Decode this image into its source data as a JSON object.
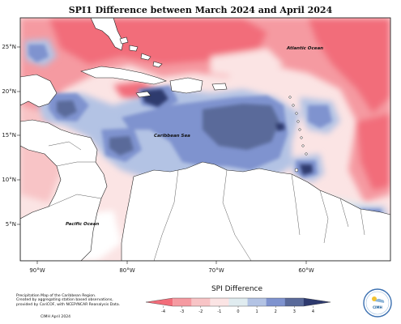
{
  "title": "SPI1 Difference between March 2024 and April 2024",
  "lon_ticks": [
    "90°W",
    "80°W",
    "70°W",
    "60°W"
  ],
  "lat_ticks": [
    "25°N",
    "20°N",
    "15°N",
    "10°N",
    "5°N"
  ],
  "place_labels": {
    "atlantic": "Atlantic Ocean",
    "caribbean": "Caribbean Sea",
    "pacific": "Pacific Ocean"
  },
  "credit_lines": [
    "Precipitation Map of the Caribbean Region.",
    "Created by aggregating station based observations,",
    "provided by CariCOF, with NCEP/NCAR Reanalysis Data."
  ],
  "date_stamp": "CIMH April 2024",
  "legend": {
    "title": "SPI Difference",
    "ticks": [
      "-4",
      "-3",
      "-2",
      "-1",
      "0",
      "1",
      "2",
      "3",
      "4"
    ],
    "colors": [
      "#f26d7a",
      "#f59aa1",
      "#f8c4c6",
      "#fbe4e4",
      "#e0ecf0",
      "#b3c3e4",
      "#7f93cf",
      "#5a6a9a",
      "#2e3a6e"
    ]
  },
  "logo": {
    "text": "CIMH"
  }
}
